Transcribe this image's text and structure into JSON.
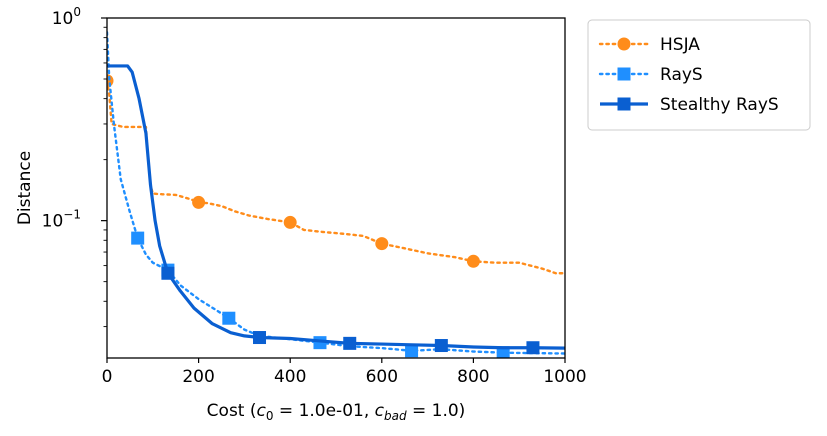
{
  "chart_data": {
    "type": "line",
    "xlabel": "Cost (",
    "xlabel_parts": {
      "c0_symbol": "c",
      "c0_sub": "0",
      "c0_value": " = 1.0e-01, ",
      "cbad_symbol": "c",
      "cbad_sub": "bad",
      "cbad_value": " = 1.0)"
    },
    "ylabel": "Distance",
    "yscale": "log",
    "xlim": [
      0,
      1000
    ],
    "ylim": [
      0.021,
      1.0
    ],
    "x_ticks": [
      0,
      200,
      400,
      600,
      800,
      1000
    ],
    "x_tick_labels": [
      "0",
      "200",
      "400",
      "600",
      "800",
      "1000"
    ],
    "y_tick_labels": [
      {
        "value": 1.0,
        "base": "10",
        "exp": "0"
      },
      {
        "value": 0.1,
        "base": "10",
        "exp": "−1"
      }
    ],
    "legend_position": "outside-right",
    "series": [
      {
        "name": "HSJA",
        "color": "#ff8c1a",
        "linestyle": "dotted",
        "marker": "circle",
        "points": [
          [
            0,
            0.49
          ],
          [
            5,
            0.42
          ],
          [
            10,
            0.3
          ],
          [
            35,
            0.29
          ],
          [
            85,
            0.29
          ],
          [
            90,
            0.2
          ],
          [
            95,
            0.15
          ],
          [
            100,
            0.136
          ],
          [
            120,
            0.135
          ],
          [
            150,
            0.134
          ],
          [
            170,
            0.13
          ],
          [
            185,
            0.127
          ],
          [
            200,
            0.123
          ],
          [
            220,
            0.122
          ],
          [
            250,
            0.118
          ],
          [
            280,
            0.111
          ],
          [
            310,
            0.106
          ],
          [
            350,
            0.102
          ],
          [
            400,
            0.098
          ],
          [
            430,
            0.09
          ],
          [
            470,
            0.088
          ],
          [
            520,
            0.086
          ],
          [
            560,
            0.084
          ],
          [
            600,
            0.077
          ],
          [
            650,
            0.073
          ],
          [
            700,
            0.069
          ],
          [
            760,
            0.066
          ],
          [
            800,
            0.063
          ],
          [
            850,
            0.062
          ],
          [
            900,
            0.062
          ],
          [
            950,
            0.058
          ],
          [
            980,
            0.055
          ],
          [
            1000,
            0.055
          ]
        ],
        "marker_points": [
          [
            0,
            0.49
          ],
          [
            200,
            0.123
          ],
          [
            400,
            0.098
          ],
          [
            600,
            0.077
          ],
          [
            800,
            0.063
          ]
        ]
      },
      {
        "name": "RayS",
        "color": "#1f8fff",
        "linestyle": "dotted",
        "marker": "square",
        "points": [
          [
            0,
            0.85
          ],
          [
            5,
            0.5
          ],
          [
            15,
            0.3
          ],
          [
            30,
            0.16
          ],
          [
            50,
            0.11
          ],
          [
            67,
            0.082
          ],
          [
            85,
            0.068
          ],
          [
            100,
            0.062
          ],
          [
            133,
            0.057
          ],
          [
            160,
            0.048
          ],
          [
            200,
            0.041
          ],
          [
            240,
            0.036
          ],
          [
            266,
            0.033
          ],
          [
            300,
            0.029
          ],
          [
            333,
            0.027
          ],
          [
            400,
            0.026
          ],
          [
            465,
            0.025
          ],
          [
            530,
            0.024
          ],
          [
            600,
            0.0235
          ],
          [
            665,
            0.0228
          ],
          [
            730,
            0.0232
          ],
          [
            800,
            0.0226
          ],
          [
            865,
            0.0223
          ],
          [
            930,
            0.0222
          ],
          [
            1000,
            0.0221
          ]
        ],
        "marker_points": [
          [
            67,
            0.082
          ],
          [
            133,
            0.057
          ],
          [
            266,
            0.033
          ],
          [
            465,
            0.025
          ],
          [
            665,
            0.0228
          ],
          [
            865,
            0.0223
          ]
        ]
      },
      {
        "name": "Stealthy RayS",
        "color": "#0a5fd1",
        "linestyle": "solid",
        "marker": "square",
        "points": [
          [
            0,
            0.58
          ],
          [
            45,
            0.58
          ],
          [
            55,
            0.54
          ],
          [
            70,
            0.4
          ],
          [
            85,
            0.27
          ],
          [
            95,
            0.15
          ],
          [
            105,
            0.1
          ],
          [
            115,
            0.075
          ],
          [
            133,
            0.055
          ],
          [
            160,
            0.045
          ],
          [
            190,
            0.037
          ],
          [
            230,
            0.031
          ],
          [
            270,
            0.028
          ],
          [
            300,
            0.027
          ],
          [
            333,
            0.0265
          ],
          [
            400,
            0.0262
          ],
          [
            465,
            0.0255
          ],
          [
            530,
            0.0248
          ],
          [
            600,
            0.0246
          ],
          [
            665,
            0.0244
          ],
          [
            730,
            0.0242
          ],
          [
            800,
            0.0238
          ],
          [
            865,
            0.0236
          ],
          [
            930,
            0.0236
          ],
          [
            1000,
            0.0235
          ]
        ],
        "marker_points": [
          [
            133,
            0.055
          ],
          [
            333,
            0.0265
          ],
          [
            530,
            0.0248
          ],
          [
            730,
            0.0242
          ],
          [
            930,
            0.0236
          ]
        ]
      }
    ]
  }
}
